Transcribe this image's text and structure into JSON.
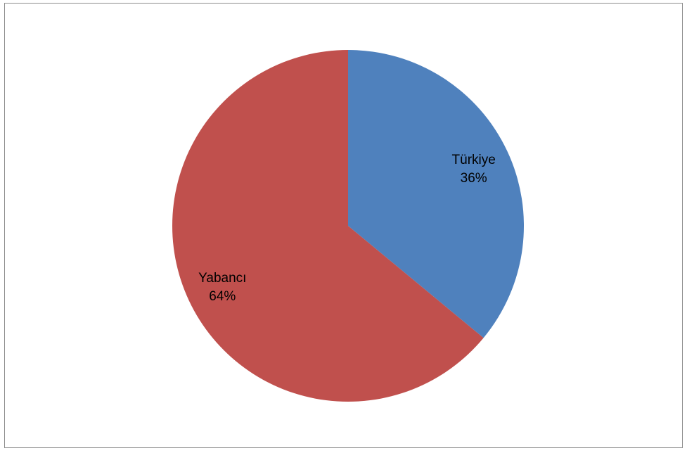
{
  "chart_data": {
    "type": "pie",
    "title": "",
    "categories": [
      "Türkiye",
      "Yabancı"
    ],
    "values": [
      36,
      64
    ],
    "data_labels": [
      "36%",
      "64%"
    ],
    "colors": [
      "#4f81bd",
      "#c0504d"
    ],
    "start_angle_deg": 0,
    "direction": "clockwise",
    "legend": "none"
  }
}
